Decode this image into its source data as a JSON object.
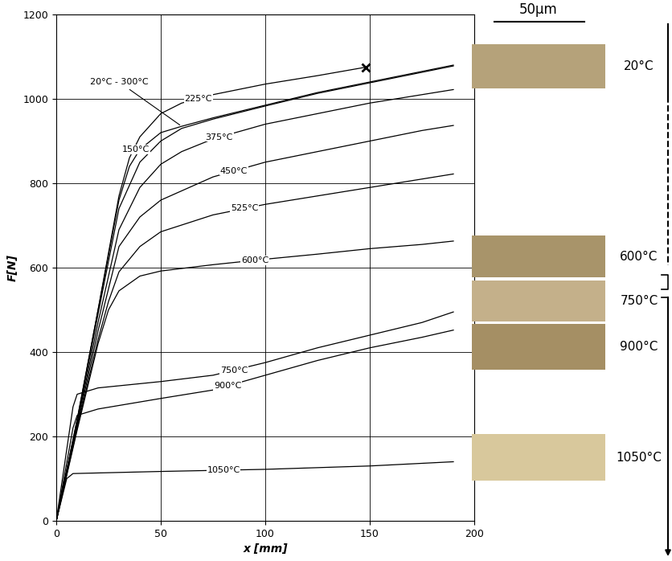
{
  "chart_data": {
    "type": "line",
    "x_label": "x [mm]",
    "y_label": "F[N]",
    "xlim": [
      0,
      200
    ],
    "ylim": [
      0,
      1200
    ],
    "xticks": [
      0,
      50,
      100,
      150,
      200
    ],
    "yticks": [
      0,
      200,
      400,
      600,
      800,
      1000,
      1200
    ],
    "grid": true,
    "series": [
      {
        "name": "20°C - 300°C",
        "color": "#000000",
        "x": [
          0,
          10,
          20,
          30,
          35,
          40,
          50,
          60,
          75,
          100,
          125,
          150,
          175,
          190
        ],
        "values": [
          0,
          240,
          500,
          760,
          840,
          880,
          920,
          935,
          955,
          985,
          1015,
          1040,
          1065,
          1080
        ]
      },
      {
        "name": "225°C",
        "color": "#000000",
        "marker": "x",
        "x": [
          0,
          10,
          20,
          30,
          35,
          40,
          50,
          60,
          75,
          100,
          125,
          148
        ],
        "values": [
          0,
          240,
          500,
          770,
          860,
          910,
          965,
          990,
          1010,
          1035,
          1055,
          1075
        ]
      },
      {
        "name": "150°C",
        "color": "#000000",
        "x": [
          0,
          10,
          20,
          30,
          40,
          50,
          60,
          75,
          100,
          125,
          150,
          175,
          190
        ],
        "values": [
          0,
          235,
          490,
          740,
          850,
          900,
          930,
          952,
          983,
          1013,
          1038,
          1063,
          1078
        ]
      },
      {
        "name": "375°C",
        "color": "#000000",
        "x": [
          0,
          10,
          20,
          30,
          40,
          50,
          60,
          75,
          100,
          125,
          150,
          175,
          190
        ],
        "values": [
          0,
          230,
          470,
          690,
          790,
          845,
          875,
          905,
          940,
          965,
          990,
          1010,
          1022
        ]
      },
      {
        "name": "450°C",
        "color": "#000000",
        "x": [
          0,
          10,
          20,
          30,
          40,
          50,
          75,
          100,
          125,
          150,
          175,
          190
        ],
        "values": [
          0,
          225,
          450,
          650,
          720,
          760,
          815,
          850,
          875,
          900,
          925,
          937
        ]
      },
      {
        "name": "525°C",
        "color": "#000000",
        "x": [
          0,
          10,
          20,
          25,
          30,
          40,
          50,
          75,
          100,
          125,
          150,
          175,
          190
        ],
        "values": [
          0,
          220,
          430,
          520,
          590,
          650,
          685,
          725,
          750,
          770,
          790,
          810,
          822
        ]
      },
      {
        "name": "600°C",
        "color": "#000000",
        "x": [
          0,
          10,
          20,
          25,
          30,
          40,
          50,
          75,
          100,
          125,
          150,
          175,
          190
        ],
        "values": [
          0,
          215,
          420,
          500,
          545,
          580,
          592,
          607,
          620,
          632,
          645,
          655,
          663
        ]
      },
      {
        "name": "750°C",
        "color": "#000000",
        "x": [
          0,
          8,
          10,
          20,
          50,
          75,
          100,
          125,
          150,
          175,
          190
        ],
        "values": [
          0,
          270,
          300,
          315,
          330,
          345,
          375,
          410,
          440,
          470,
          495
        ]
      },
      {
        "name": "900°C",
        "color": "#000000",
        "x": [
          0,
          8,
          10,
          20,
          50,
          75,
          100,
          125,
          150,
          175,
          190
        ],
        "values": [
          0,
          220,
          250,
          265,
          290,
          310,
          345,
          380,
          410,
          435,
          452
        ]
      },
      {
        "name": "1050°C",
        "color": "#000000",
        "x": [
          0,
          5,
          8,
          50,
          100,
          150,
          190
        ],
        "values": [
          0,
          100,
          112,
          117,
          122,
          130,
          140
        ]
      }
    ]
  },
  "micrographs": {
    "scale_bar": "50µm",
    "labels": [
      "20°C",
      "600°C",
      "750°C",
      "900°C",
      "1050°C"
    ]
  }
}
